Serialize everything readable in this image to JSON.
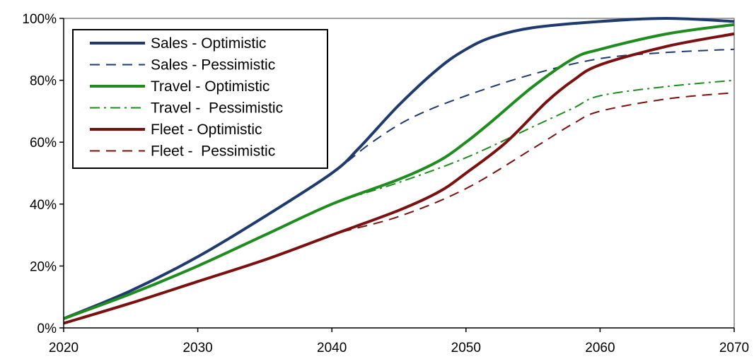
{
  "chart_data": {
    "type": "line",
    "title": "",
    "xlabel": "",
    "ylabel": "",
    "xlim": [
      2020,
      2070
    ],
    "ylim": [
      0,
      100
    ],
    "x_ticks": [
      {
        "value": 2020,
        "label": "2020"
      },
      {
        "value": 2030,
        "label": "2030"
      },
      {
        "value": 2040,
        "label": "2040"
      },
      {
        "value": 2050,
        "label": "2050"
      },
      {
        "value": 2060,
        "label": "2060"
      },
      {
        "value": 2070,
        "label": "2070"
      }
    ],
    "y_ticks": [
      {
        "value": 0,
        "label": "0%"
      },
      {
        "value": 20,
        "label": "20%"
      },
      {
        "value": 40,
        "label": "40%"
      },
      {
        "value": 60,
        "label": "60%"
      },
      {
        "value": 80,
        "label": "80%"
      },
      {
        "value": 100,
        "label": "100%"
      }
    ],
    "grid": false,
    "legend_position": "top-left",
    "series": [
      {
        "name": "Sales - Optimistic",
        "color": "#1f3a6e",
        "style": "solid",
        "points": [
          [
            2020,
            3
          ],
          [
            2025,
            12
          ],
          [
            2030,
            23
          ],
          [
            2035,
            36
          ],
          [
            2040,
            50
          ],
          [
            2042,
            58
          ],
          [
            2045,
            72
          ],
          [
            2048,
            84
          ],
          [
            2050,
            90
          ],
          [
            2052,
            94
          ],
          [
            2055,
            97
          ],
          [
            2060,
            99
          ],
          [
            2065,
            100
          ],
          [
            2070,
            99
          ]
        ]
      },
      {
        "name": "Sales - Pessimistic",
        "color": "#1f3a6e",
        "style": "dashed",
        "points": [
          [
            2020,
            3
          ],
          [
            2025,
            12
          ],
          [
            2030,
            23
          ],
          [
            2035,
            36
          ],
          [
            2040,
            50
          ],
          [
            2043,
            60
          ],
          [
            2046,
            68
          ],
          [
            2050,
            75
          ],
          [
            2055,
            82
          ],
          [
            2060,
            87
          ],
          [
            2065,
            89
          ],
          [
            2070,
            90
          ]
        ]
      },
      {
        "name": "Travel - Optimistic",
        "color": "#1e8c1e",
        "style": "solid",
        "points": [
          [
            2020,
            3
          ],
          [
            2025,
            11
          ],
          [
            2030,
            20
          ],
          [
            2035,
            30
          ],
          [
            2040,
            40
          ],
          [
            2045,
            48
          ],
          [
            2048,
            54
          ],
          [
            2050,
            60
          ],
          [
            2052,
            67
          ],
          [
            2055,
            78
          ],
          [
            2058,
            87
          ],
          [
            2060,
            90
          ],
          [
            2065,
            95
          ],
          [
            2070,
            98
          ]
        ]
      },
      {
        "name": "Travel -  Pessimistic",
        "color": "#1e8c1e",
        "style": "dashdot",
        "points": [
          [
            2020,
            3
          ],
          [
            2025,
            11
          ],
          [
            2030,
            20
          ],
          [
            2035,
            30
          ],
          [
            2040,
            40
          ],
          [
            2045,
            47
          ],
          [
            2050,
            55
          ],
          [
            2055,
            65
          ],
          [
            2058,
            71
          ],
          [
            2060,
            75
          ],
          [
            2065,
            78
          ],
          [
            2070,
            80
          ]
        ]
      },
      {
        "name": "Fleet - Optimistic",
        "color": "#7b1010",
        "style": "solid",
        "points": [
          [
            2020,
            1.5
          ],
          [
            2025,
            8
          ],
          [
            2030,
            15
          ],
          [
            2035,
            22
          ],
          [
            2040,
            30
          ],
          [
            2045,
            38
          ],
          [
            2048,
            44
          ],
          [
            2050,
            50
          ],
          [
            2053,
            60
          ],
          [
            2056,
            73
          ],
          [
            2058,
            80
          ],
          [
            2060,
            85
          ],
          [
            2065,
            91
          ],
          [
            2070,
            95
          ]
        ]
      },
      {
        "name": "Fleet -  Pessimistic",
        "color": "#7b1010",
        "style": "dashed",
        "points": [
          [
            2020,
            1.5
          ],
          [
            2025,
            8
          ],
          [
            2030,
            15
          ],
          [
            2035,
            22
          ],
          [
            2040,
            30
          ],
          [
            2045,
            36
          ],
          [
            2050,
            45
          ],
          [
            2055,
            58
          ],
          [
            2058,
            66
          ],
          [
            2060,
            70
          ],
          [
            2065,
            74
          ],
          [
            2070,
            76
          ]
        ]
      }
    ]
  }
}
